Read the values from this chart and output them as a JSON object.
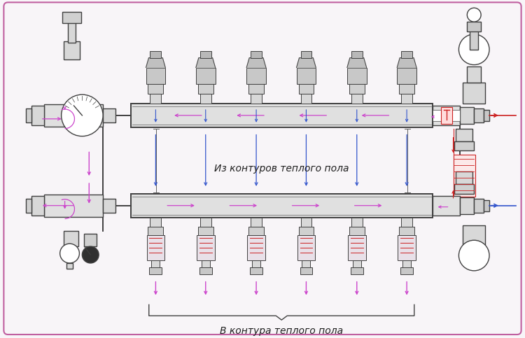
{
  "bg_color": "#f8f5f8",
  "border_color": "#c060a0",
  "line_color": "#404040",
  "line_color2": "#606060",
  "pink_color": "#cc44cc",
  "blue_color": "#3355cc",
  "red_color": "#cc2222",
  "text_color": "#202020",
  "title_upper": "Из контуров теплого пола",
  "title_lower": "В контура теплого пола",
  "fig_width": 7.5,
  "fig_height": 4.83,
  "dpi": 100,
  "n_outlets": 6
}
